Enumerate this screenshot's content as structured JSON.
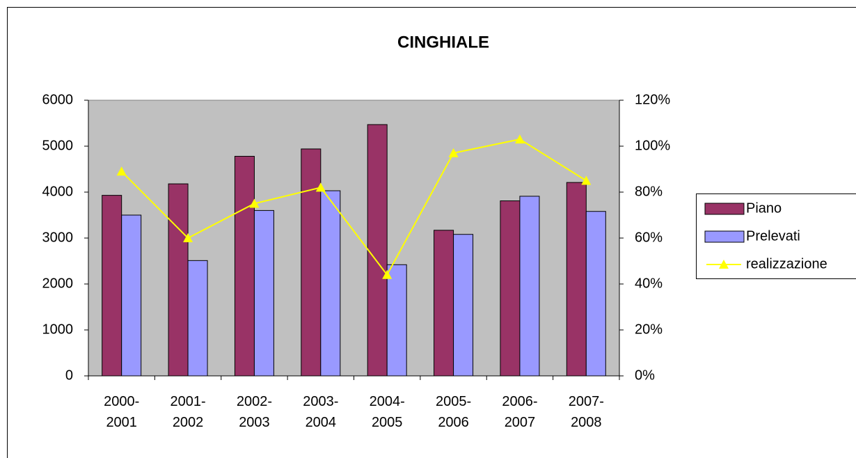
{
  "chart_data": {
    "type": "bar",
    "title": "CINGHIALE",
    "categories": [
      "2000-2001",
      "2001-2002",
      "2002-2003",
      "2003-2004",
      "2004-2005",
      "2005-2006",
      "2006-2007",
      "2007-2008"
    ],
    "series": [
      {
        "name": "Piano",
        "color": "#993366",
        "values": [
          3930,
          4180,
          4780,
          4940,
          5470,
          3170,
          3810,
          4210
        ]
      },
      {
        "name": "Prelevati",
        "color": "#9999FF",
        "values": [
          3500,
          2510,
          3600,
          4030,
          2420,
          3080,
          3910,
          3580
        ]
      },
      {
        "name": "realizzazione",
        "color": "#FFFF00",
        "type": "line",
        "axis": "y2",
        "values": [
          89,
          60,
          75,
          82,
          44,
          97,
          103,
          85
        ]
      }
    ],
    "ylim": [
      0,
      6000
    ],
    "yticks": [
      0,
      1000,
      2000,
      3000,
      4000,
      5000,
      6000
    ],
    "y2lim": [
      0,
      120
    ],
    "y2ticks": [
      {
        "value": 0,
        "label": "0%"
      },
      {
        "value": 20,
        "label": "20%"
      },
      {
        "value": 40,
        "label": "40%"
      },
      {
        "value": 60,
        "label": "60%"
      },
      {
        "value": 80,
        "label": "80%"
      },
      {
        "value": 100,
        "label": "100%"
      },
      {
        "value": 120,
        "label": "120%"
      }
    ],
    "grid": false,
    "legend": "right"
  }
}
